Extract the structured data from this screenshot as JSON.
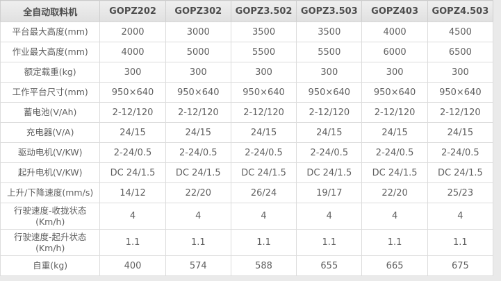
{
  "page": {
    "background_color": "#eaeaea"
  },
  "table": {
    "title_cell": "全自动取料机",
    "columns": [
      "GOPZ202",
      "GOPZ302",
      "GOPZ3.502",
      "GOPZ3.503",
      "GOPZ403",
      "GOPZ4.503"
    ],
    "rows": [
      {
        "label": "平台最大高度(mm)",
        "values": [
          "2000",
          "3000",
          "3500",
          "3500",
          "4000",
          "4500"
        ],
        "two_line": false
      },
      {
        "label": "作业最大高度(mm)",
        "values": [
          "4000",
          "5000",
          "5500",
          "5500",
          "6000",
          "6500"
        ],
        "two_line": false
      },
      {
        "label": "额定载重(kg)",
        "values": [
          "300",
          "300",
          "300",
          "300",
          "300",
          "300"
        ],
        "two_line": false
      },
      {
        "label": "工作平台尺寸(mm)",
        "values": [
          "950×640",
          "950×640",
          "950×640",
          "950×640",
          "950×640",
          "950×640"
        ],
        "two_line": false
      },
      {
        "label": "蓄电池(V/Ah)",
        "values": [
          "2-12/120",
          "2-12/120",
          "2-12/120",
          "2-12/120",
          "2-12/120",
          "2-12/120"
        ],
        "two_line": false
      },
      {
        "label": "充电器(V/A)",
        "values": [
          "24/15",
          "24/15",
          "24/15",
          "24/15",
          "24/15",
          "24/15"
        ],
        "two_line": false
      },
      {
        "label": "驱动电机(V/KW)",
        "values": [
          "2-24/0.5",
          "2-24/0.5",
          "2-24/0.5",
          "2-24/0.5",
          "2-24/0.5",
          "2-24/0.5"
        ],
        "two_line": false
      },
      {
        "label": "起升电机(V/KW)",
        "values": [
          "DC 24/1.5",
          "DC 24/1.5",
          "DC 24/1.5",
          "DC 24/1.5",
          "DC 24/1.5",
          "DC 24/1.5"
        ],
        "two_line": false
      },
      {
        "label": "上升/下降速度(mm/s)",
        "values": [
          "14/12",
          "22/20",
          "26/24",
          "19/17",
          "22/20",
          "25/23"
        ],
        "two_line": false
      },
      {
        "label": "行驶速度-收拢状态\n(Km/h)",
        "values": [
          "4",
          "4",
          "4",
          "4",
          "4",
          "4"
        ],
        "two_line": true
      },
      {
        "label": "行驶速度-起升状态\n(Km/h)",
        "values": [
          "1.1",
          "1.1",
          "1.1",
          "1.1",
          "1.1",
          "1.1"
        ],
        "two_line": true
      },
      {
        "label": "自重(kg)",
        "values": [
          "400",
          "574",
          "588",
          "655",
          "665",
          "675"
        ],
        "two_line": false
      }
    ],
    "colors": {
      "header_bg": "#e4e4e4",
      "header_text": "#4d4d4d",
      "body_text": "#606060",
      "border": "#dcdcdc",
      "cell_bg": "#ffffff",
      "outer_bg": "#eaeaea"
    }
  }
}
